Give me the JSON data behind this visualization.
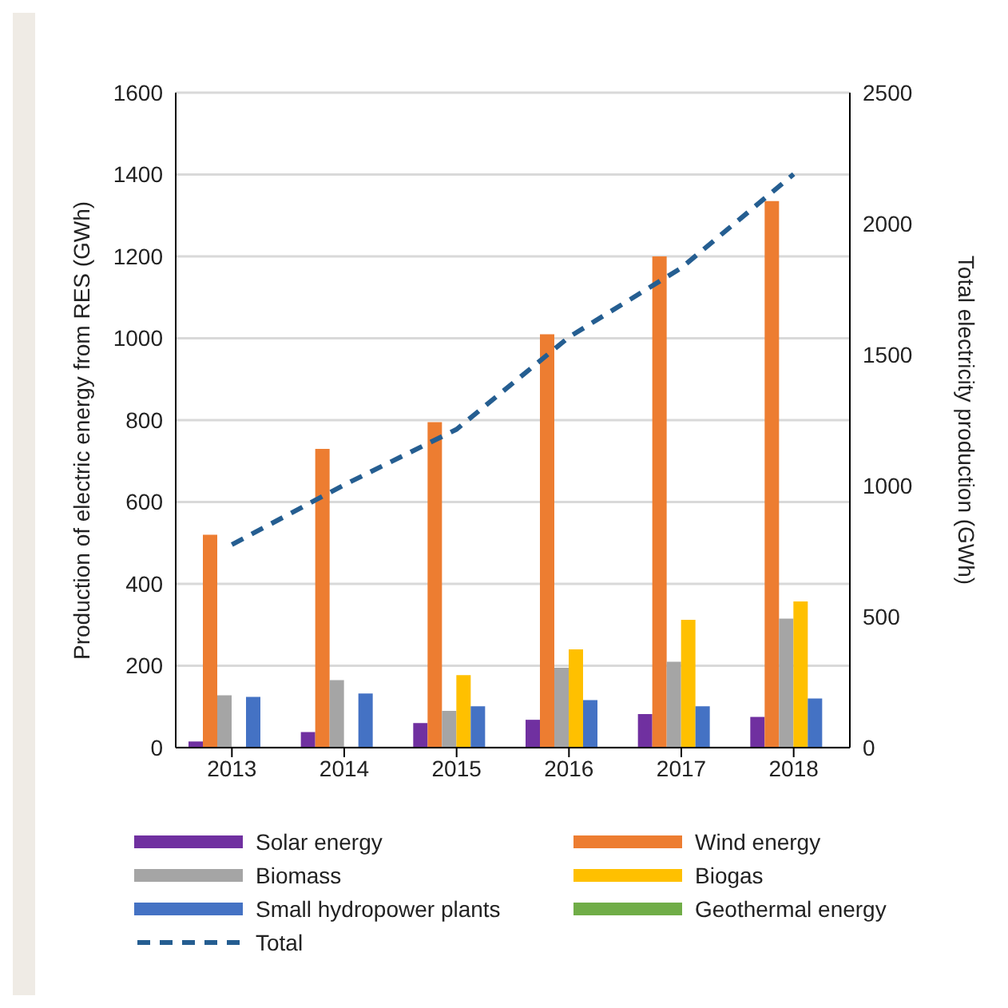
{
  "chart_data": {
    "type": "bar",
    "ylabel": "Production of electric energy from RES (GWh)",
    "y2label": "Total electricity production (GWh)",
    "categories": [
      "2013",
      "2014",
      "2015",
      "2016",
      "2017",
      "2018"
    ],
    "series": [
      {
        "name": "Solar energy",
        "color": "#7030a0",
        "values": [
          15,
          38,
          60,
          68,
          82,
          75
        ]
      },
      {
        "name": "Wind energy",
        "color": "#ed7d31",
        "values": [
          520,
          730,
          795,
          1010,
          1200,
          1335
        ]
      },
      {
        "name": "Biomass",
        "color": "#a5a5a5",
        "values": [
          128,
          165,
          90,
          195,
          210,
          315
        ]
      },
      {
        "name": "Biogas",
        "color": "#ffc000",
        "values": [
          0,
          0,
          177,
          240,
          312,
          357
        ]
      },
      {
        "name": "Small hydropower plants",
        "color": "#4472c4",
        "values": [
          124,
          132,
          101,
          116,
          101,
          120
        ]
      },
      {
        "name": "Geothermal energy",
        "color": "#70ad47",
        "values": [
          0,
          0,
          0,
          0,
          0,
          0
        ]
      },
      {
        "name": "Total",
        "type": "line",
        "axis": "y2",
        "color": "#255e91",
        "line_style": "dashed",
        "marker": "none",
        "values": [
          775,
          1003,
          1215,
          1567,
          1831,
          2189
        ]
      }
    ],
    "ylim": [
      0,
      1600
    ],
    "yticks": [
      0,
      200,
      400,
      600,
      800,
      1000,
      1200,
      1400,
      1600
    ],
    "y2lim": [
      0,
      2500
    ],
    "y2ticks": [
      0,
      500,
      1000,
      1500,
      2000,
      2500
    ],
    "grid": "y",
    "legend": "bottom"
  }
}
